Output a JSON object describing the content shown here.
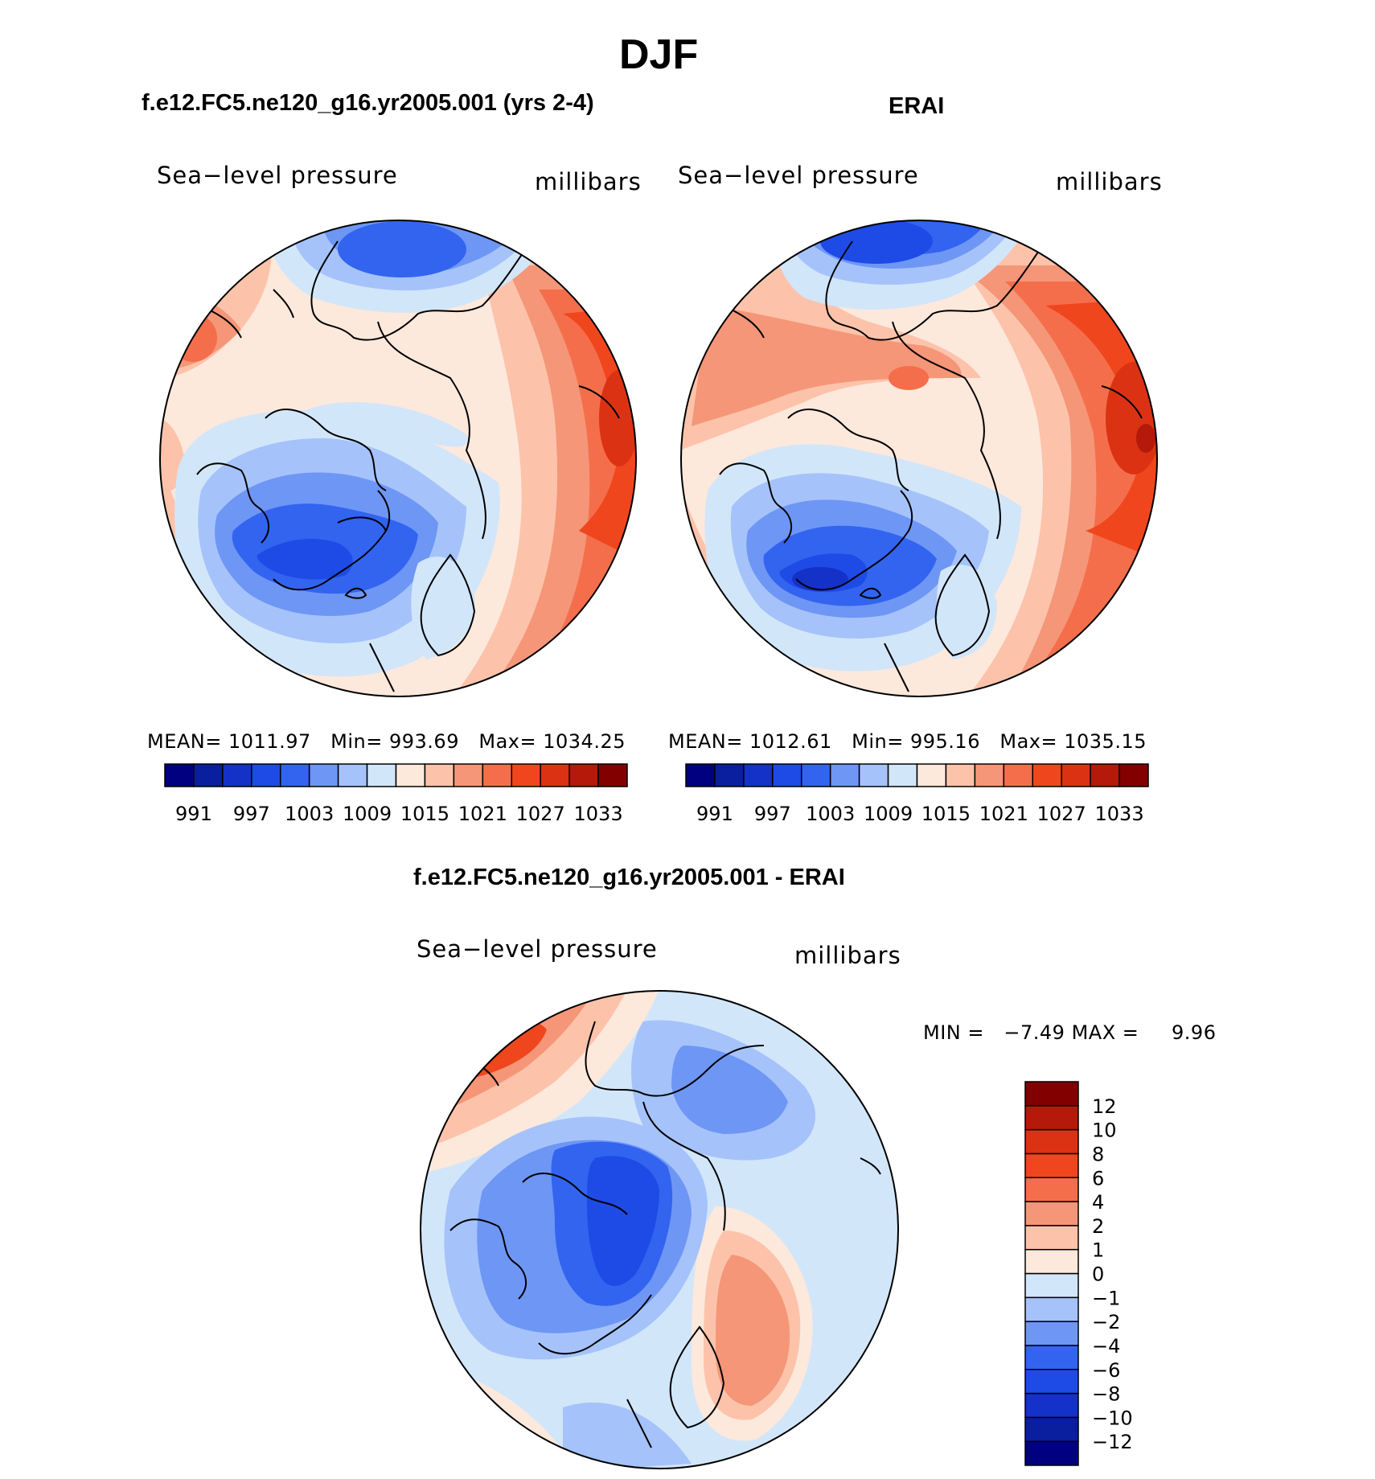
{
  "figure": {
    "season": "DJF",
    "panels": [
      {
        "title": "f.e12.FC5.ne120_g16.yr2005.001 (yrs 2-4)",
        "variable": "Sea−level pressure",
        "units": "millibars",
        "mean_label": "MEAN=",
        "mean": "1011.97",
        "min_label": "Min=",
        "min": "993.69",
        "max_label": "Max=",
        "max": "1034.25"
      },
      {
        "title": "ERAI",
        "variable": "Sea−level pressure",
        "units": "millibars",
        "mean_label": "MEAN=",
        "mean": "1012.61",
        "min_label": "Min=",
        "min": "995.16",
        "max_label": "Max=",
        "max": "1035.15"
      }
    ],
    "difference": {
      "title": "f.e12.FC5.ne120_g16.yr2005.001 - ERAI",
      "variable": "Sea−level pressure",
      "units": "millibars",
      "min_label": "MIN =",
      "min": "−7.49",
      "max_label": "MAX =",
      "max": "9.96"
    }
  },
  "colorbars": {
    "absolute": {
      "colors": [
        "#000080",
        "#0a1ea0",
        "#1432c8",
        "#1e4be6",
        "#3264f0",
        "#6e96f5",
        "#a5c3fa",
        "#d2e6fa",
        "#fde8dc",
        "#fcc3aa",
        "#f59678",
        "#f56e4b",
        "#f0461e",
        "#dc3214",
        "#b4190a",
        "#820000"
      ],
      "labels": [
        "991",
        "997",
        "1003",
        "1009",
        "1015",
        "1021",
        "1027",
        "1033"
      ]
    },
    "difference": {
      "colors": [
        "#000080",
        "#0a1ea0",
        "#1432c8",
        "#1e4be6",
        "#3264f0",
        "#6e96f5",
        "#a5c3fa",
        "#d2e6fa",
        "#fde8dc",
        "#fcc3aa",
        "#f59678",
        "#f56e4b",
        "#f0461e",
        "#dc3214",
        "#b4190a",
        "#820000"
      ],
      "labels": [
        "−12",
        "−10",
        "−8",
        "−6",
        "−4",
        "−2",
        "−1",
        "0",
        "1",
        "2",
        "4",
        "6",
        "8",
        "10",
        "12"
      ]
    }
  }
}
